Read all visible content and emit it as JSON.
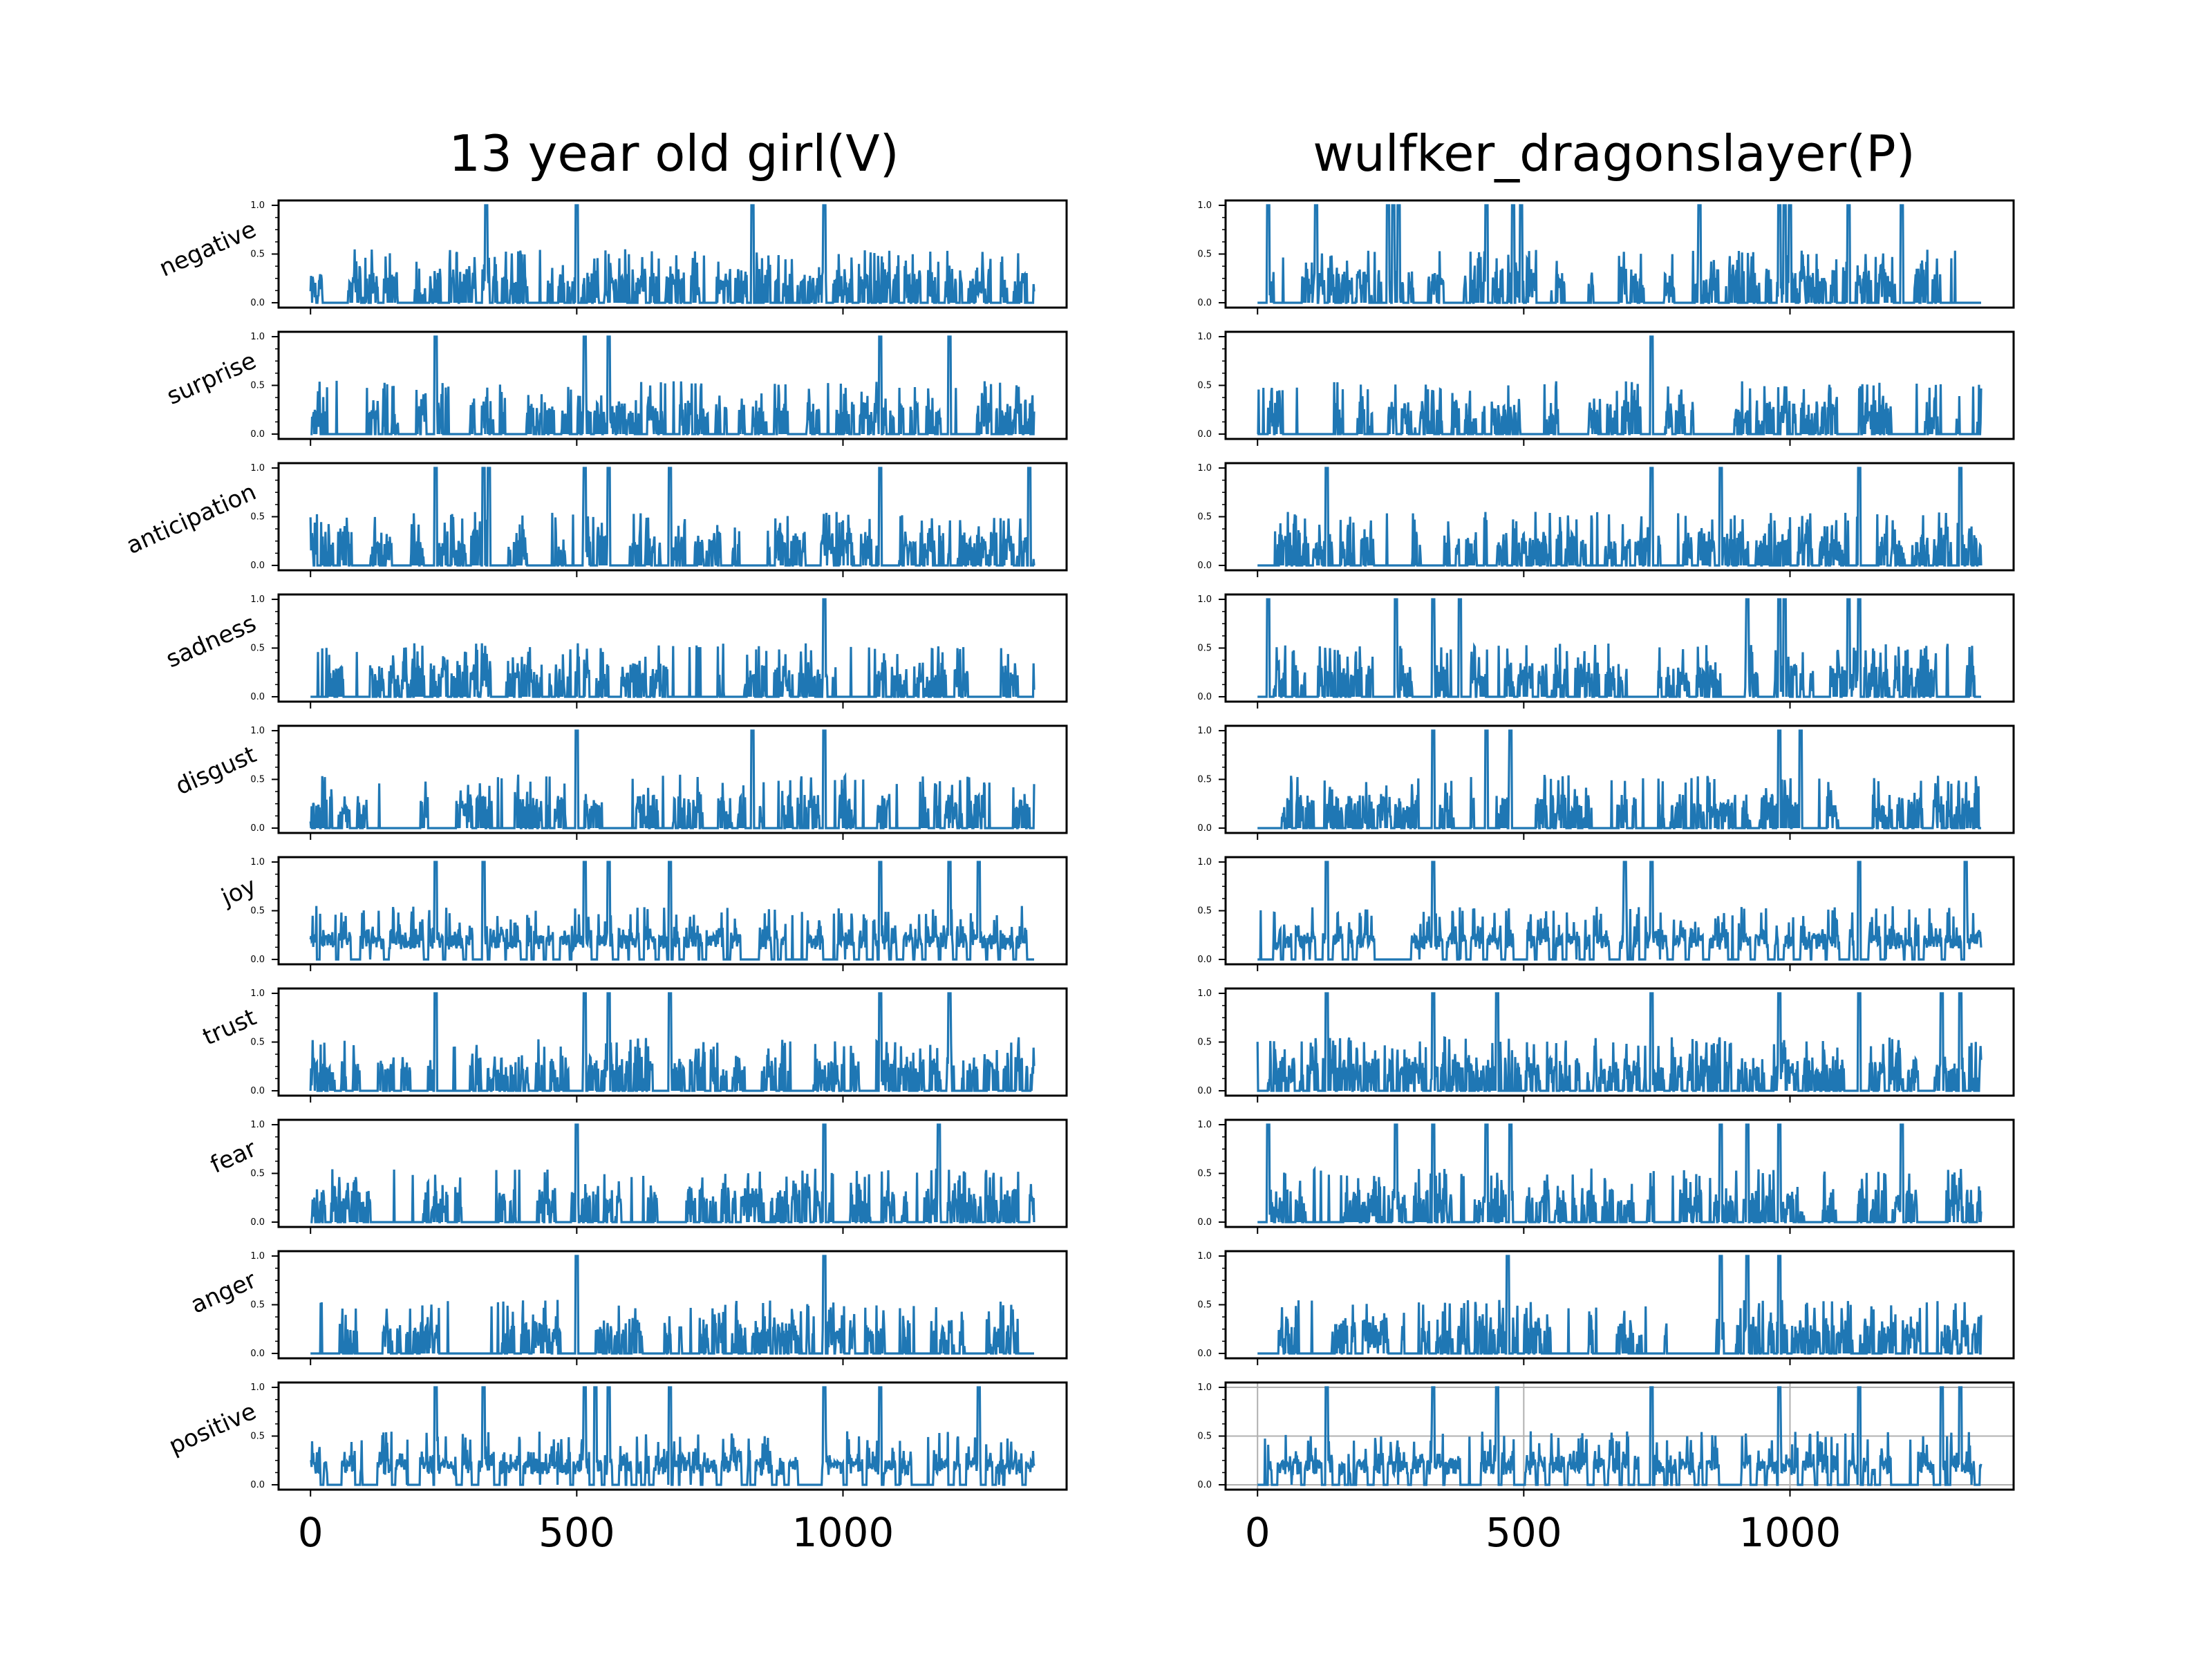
{
  "figure": {
    "left_title": "13 year old girl(V)",
    "right_title": "wulfker_dragonslayer(P)"
  },
  "chart_data": {
    "type": "line",
    "series_color": "#1f77b4",
    "xlim": [
      -60,
      1420
    ],
    "ylim": [
      -0.05,
      1.05
    ],
    "x_ticks": [
      0,
      500,
      1000
    ],
    "x_tick_labels": [
      "0",
      "500",
      "1000"
    ],
    "y_ticks": [
      0.0,
      0.5,
      1.0
    ],
    "y_tick_labels": [
      "0.0",
      "0.5",
      "1.0"
    ],
    "rows": [
      "negative",
      "surprise",
      "anticipation",
      "sadness",
      "disgust",
      "joy",
      "trust",
      "fear",
      "anger",
      "positive"
    ],
    "columns": [
      {
        "title": "13 year old girl(V)",
        "x_range": [
          0,
          1360
        ],
        "peaks": {
          "negative": [
            330,
            500,
            830,
            965
          ],
          "surprise": [
            235,
            515,
            560,
            1070,
            1200
          ],
          "anticipation": [
            235,
            325,
            335,
            515,
            560,
            675,
            1070,
            1350
          ],
          "sadness": [
            965
          ],
          "disgust": [
            500,
            830,
            965
          ],
          "joy": [
            235,
            325,
            515,
            560,
            675,
            1070,
            1200,
            1255
          ],
          "trust": [
            235,
            515,
            560,
            675,
            1070,
            1200
          ],
          "fear": [
            500,
            965,
            1180
          ],
          "anger": [
            500,
            965
          ],
          "positive": [
            235,
            325,
            515,
            535,
            560,
            675,
            965,
            1070,
            1255
          ]
        },
        "grid": [
          false,
          false,
          false,
          false,
          false,
          false,
          false,
          false,
          false,
          false
        ]
      },
      {
        "title": "wulfker_dragonslayer(P)",
        "x_range": [
          0,
          1360
        ],
        "peaks": {
          "negative": [
            20,
            110,
            245,
            255,
            265,
            430,
            480,
            495,
            830,
            980,
            990,
            1000,
            1110,
            1210
          ],
          "surprise": [
            740
          ],
          "anticipation": [
            130,
            740,
            870,
            1130,
            1320
          ],
          "sadness": [
            20,
            260,
            330,
            380,
            920,
            980,
            990,
            1110,
            1130
          ],
          "disgust": [
            330,
            430,
            475,
            980,
            1020
          ],
          "joy": [
            130,
            330,
            690,
            740,
            1130,
            1330
          ],
          "trust": [
            130,
            330,
            450,
            740,
            980,
            1130,
            1285,
            1320
          ],
          "fear": [
            20,
            260,
            330,
            430,
            475,
            870,
            920,
            980,
            1210
          ],
          "anger": [
            470,
            870,
            920,
            980
          ],
          "positive": [
            130,
            330,
            450,
            740,
            980,
            1130,
            1285,
            1320
          ]
        },
        "grid": [
          false,
          false,
          false,
          false,
          false,
          false,
          false,
          false,
          false,
          true
        ]
      }
    ]
  }
}
